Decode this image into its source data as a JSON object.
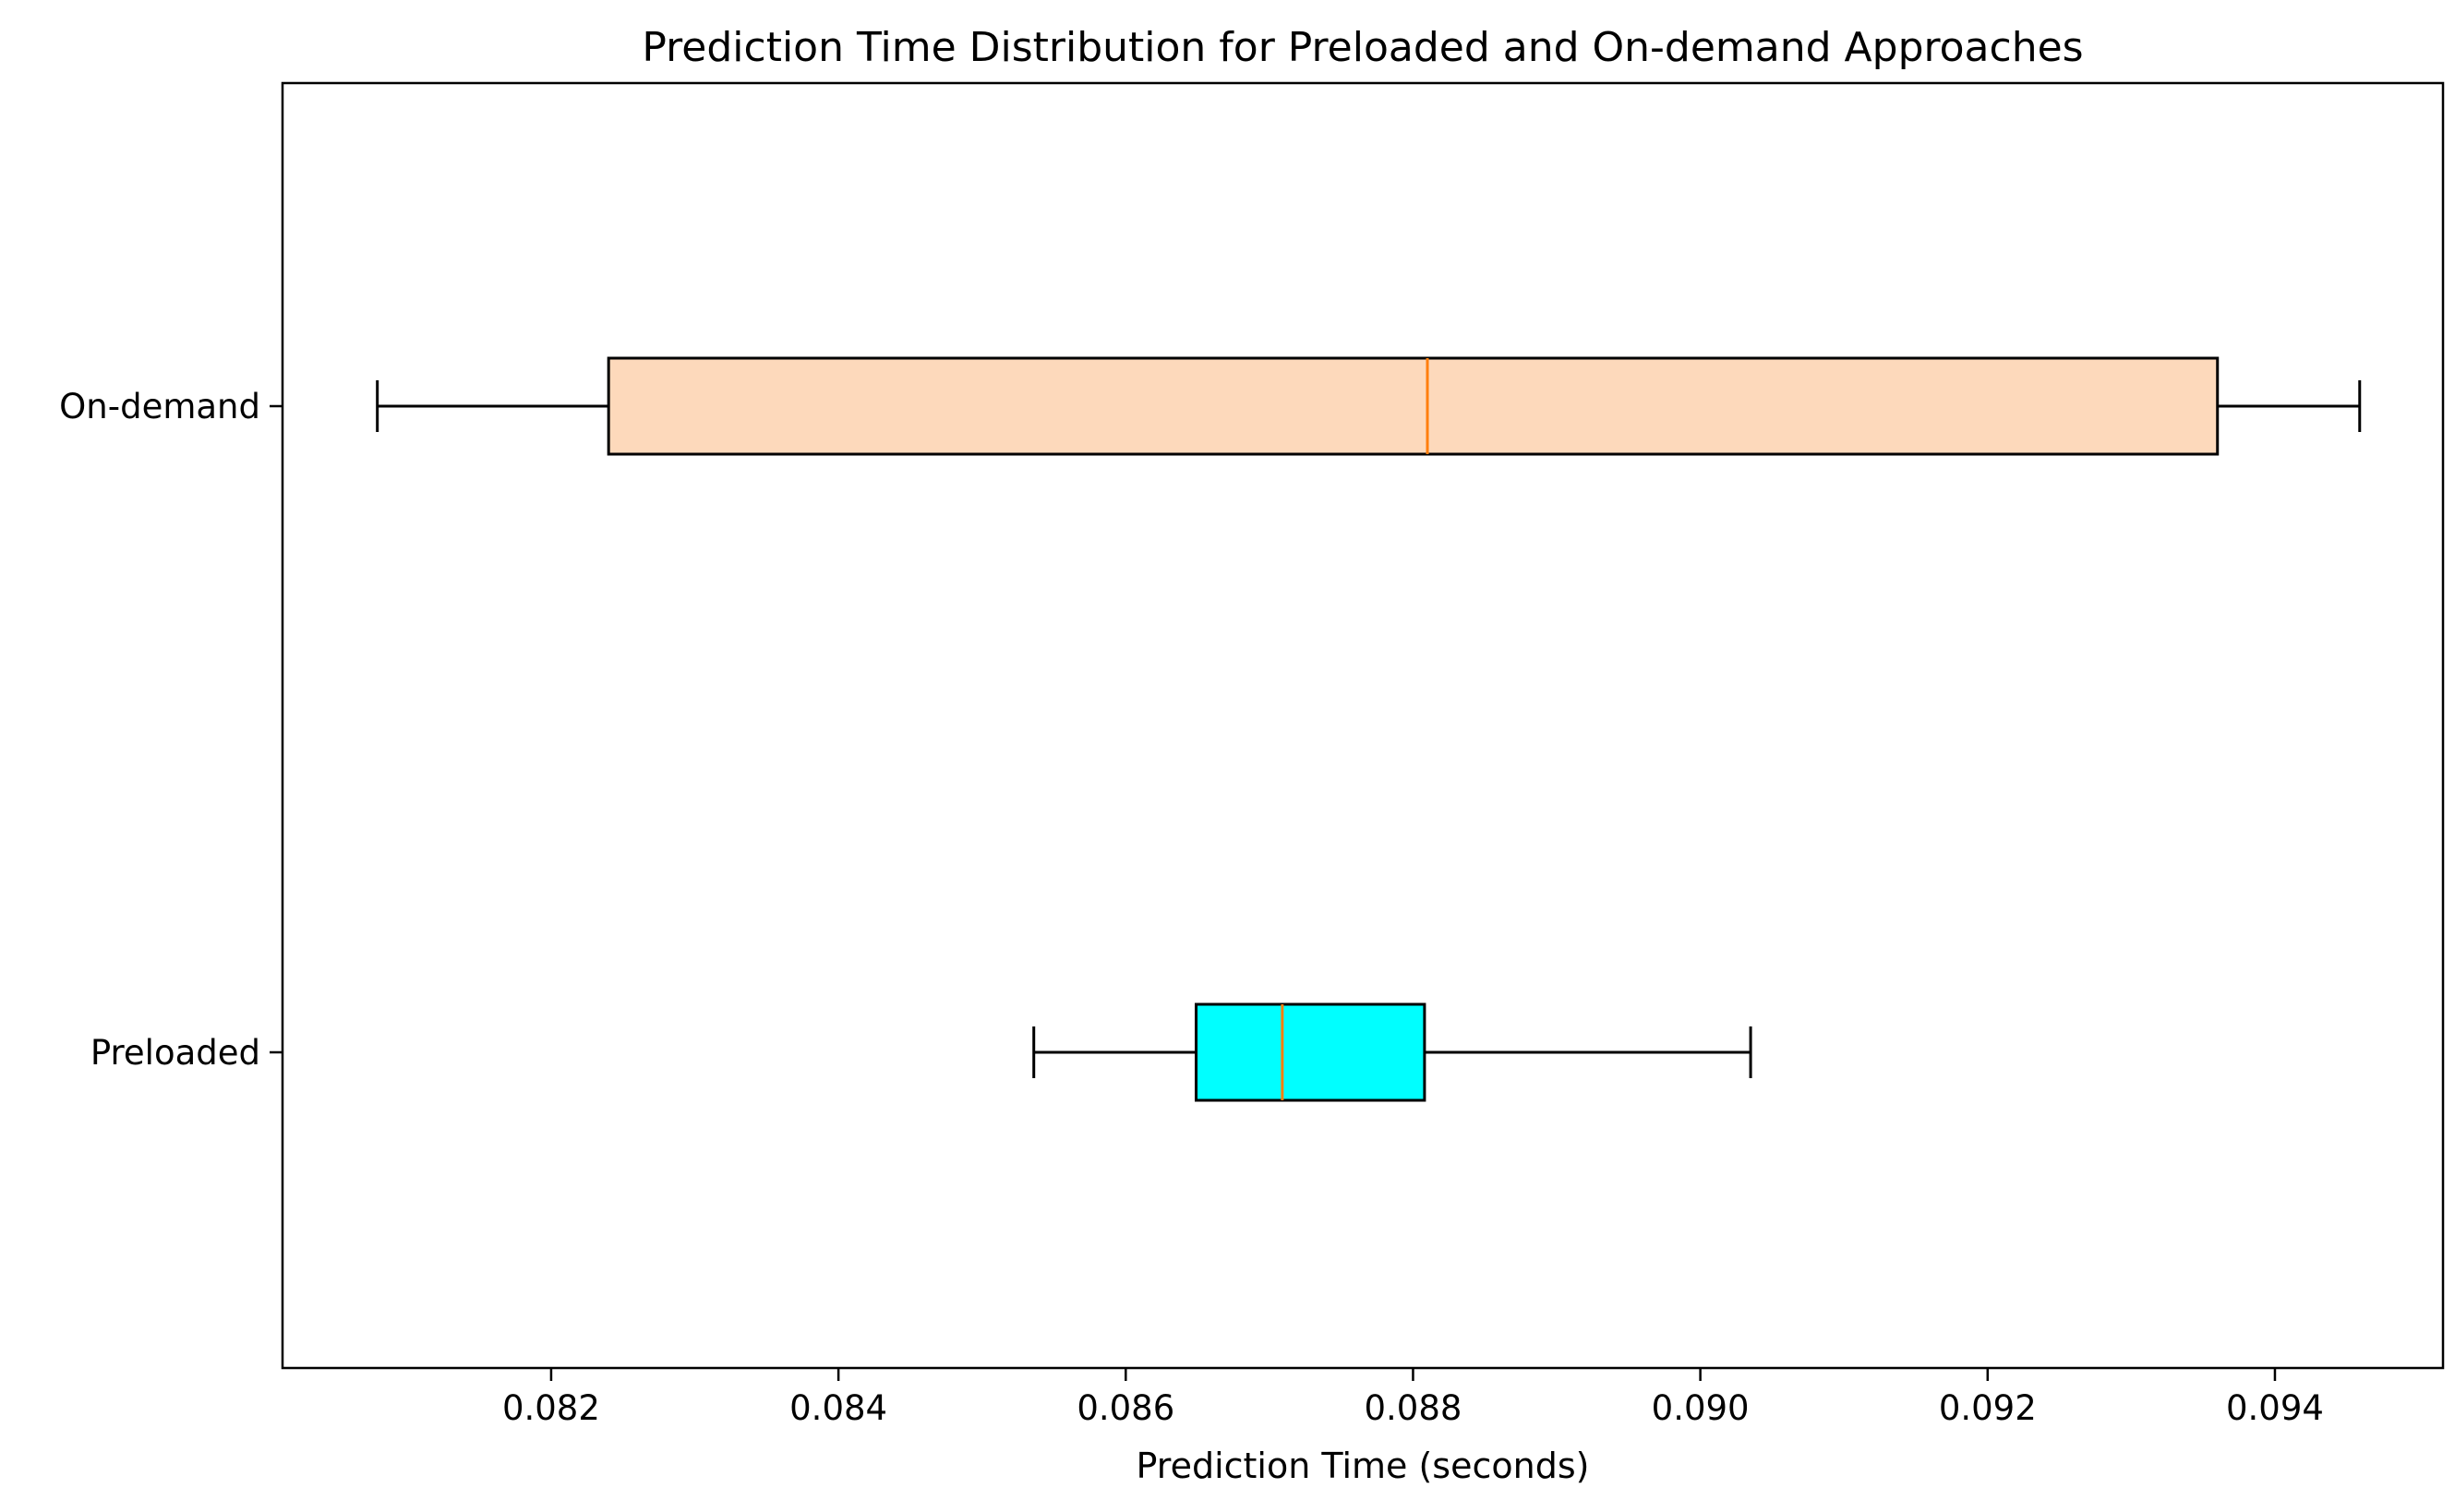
{
  "chart_data": {
    "type": "boxplot",
    "orientation": "horizontal",
    "title": "Prediction Time Distribution for Preloaded and On-demand Approaches",
    "xlabel": "Prediction Time (seconds)",
    "ylabel": "",
    "xlim": [
      0.08013,
      0.09517
    ],
    "xticks": [
      0.082,
      0.084,
      0.086,
      0.088,
      0.09,
      0.092,
      0.094
    ],
    "xtick_labels": [
      "0.082",
      "0.084",
      "0.086",
      "0.088",
      "0.090",
      "0.092",
      "0.094"
    ],
    "grid": false,
    "categories": [
      "Preloaded",
      "On-demand"
    ],
    "boxes": [
      {
        "label": "Preloaded",
        "whisker_low": 0.08536,
        "q1": 0.08649,
        "median": 0.08709,
        "q3": 0.08808,
        "whisker_high": 0.09035,
        "color": "#00ffff"
      },
      {
        "label": "On-demand",
        "whisker_low": 0.08079,
        "q1": 0.0824,
        "median": 0.0881,
        "q3": 0.0936,
        "whisker_high": 0.09459,
        "color": "#fdd9bb"
      }
    ],
    "median_color": "#ff7f0e"
  }
}
